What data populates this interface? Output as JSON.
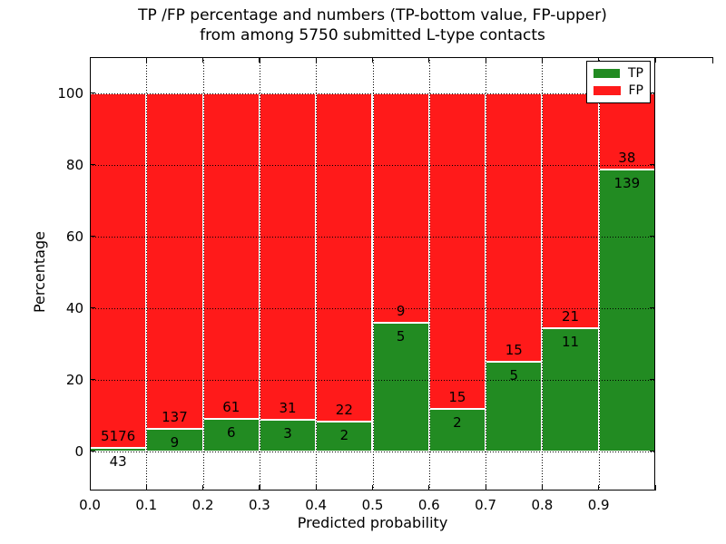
{
  "title": {
    "line1": "TP /FP percentage and numbers (TP-bottom value, FP-upper)",
    "line2": "from among 5750 submitted L-type contacts"
  },
  "axes": {
    "x_label": "Predicted probability",
    "y_label": "Percentage",
    "x_tick_labels": [
      "0.0",
      "0.1",
      "0.2",
      "0.3",
      "0.4",
      "0.5",
      "0.6",
      "0.7",
      "0.8",
      "0.9"
    ],
    "y_tick_labels": [
      "0",
      "20",
      "40",
      "60",
      "80",
      "100"
    ]
  },
  "legend": {
    "position": "upper right",
    "items": [
      {
        "label": "TP",
        "color": "#228b22"
      },
      {
        "label": "FP",
        "color": "#ff1a1a"
      }
    ]
  },
  "colors": {
    "tp": "#228b22",
    "fp": "#ff1a1a",
    "bar_edge": "#ffffff",
    "grid": "#000000",
    "text": "#000000",
    "background": "#ffffff"
  },
  "chart_data": {
    "type": "bar",
    "stacked": true,
    "normalized": "each bar totals 100%",
    "title": "TP /FP percentage and numbers (TP-bottom value, FP-upper) from among 5750 submitted L-type contacts",
    "xlabel": "Predicted probability",
    "ylabel": "Percentage",
    "total_contacts": 5750,
    "bin_start": [
      0.0,
      0.1,
      0.2,
      0.3,
      0.4,
      0.5,
      0.6,
      0.7,
      0.8,
      0.9
    ],
    "bin_width": 0.1,
    "series": [
      {
        "name": "TP",
        "counts": [
          43,
          9,
          6,
          3,
          2,
          5,
          2,
          5,
          11,
          139
        ],
        "pct_of_bin": [
          0.82,
          6.16,
          8.96,
          8.82,
          8.33,
          35.71,
          11.76,
          25.0,
          34.38,
          78.53
        ]
      },
      {
        "name": "FP",
        "counts": [
          5176,
          137,
          61,
          31,
          22,
          9,
          15,
          15,
          21,
          38
        ],
        "pct_of_bin": [
          99.18,
          93.84,
          91.04,
          91.18,
          91.67,
          64.29,
          88.24,
          75.0,
          65.62,
          21.47
        ]
      }
    ],
    "x_ticks": [
      0.0,
      0.1,
      0.2,
      0.3,
      0.4,
      0.5,
      0.6,
      0.7,
      0.8,
      0.9
    ],
    "y_ticks": [
      0,
      20,
      40,
      60,
      80,
      100
    ],
    "xlim": [
      0.0,
      1.0
    ],
    "ylim": [
      -11,
      110
    ],
    "grid": "dotted, both axes, drawn over bars",
    "legend_position": "upper right"
  }
}
